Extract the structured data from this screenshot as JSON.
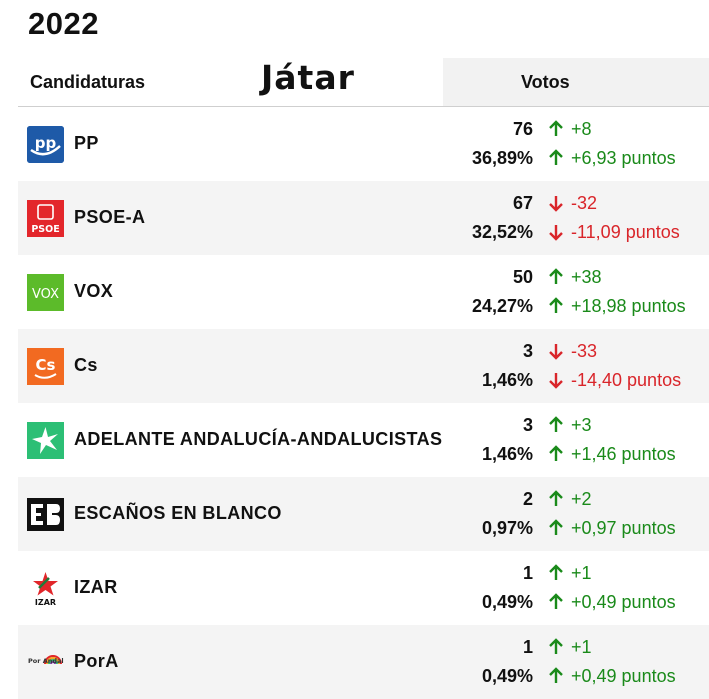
{
  "year": "2022",
  "header": {
    "candidaturas": "Candidaturas",
    "title": "Játar",
    "votos": "Votos"
  },
  "colors": {
    "up": "#1a8a1a",
    "down": "#d9252a",
    "pp": "#1e5aa8",
    "psoe": "#e3262b",
    "vox": "#5cbb2a",
    "cs": "#f26a21",
    "adelante": "#2cbf75",
    "eb": "#111111",
    "izar": "#e1262a"
  },
  "rows": [
    {
      "name": "PP",
      "seats": "76",
      "pct": "36,89%",
      "diff1": "+8",
      "diff2": "+6,93 puntos",
      "trend": "up",
      "logo_icon": "pp-logo-icon",
      "logo_text": "pp"
    },
    {
      "name": "PSOE-A",
      "seats": "67",
      "pct": "32,52%",
      "diff1": "-32",
      "diff2": "-11,09 puntos",
      "trend": "down",
      "logo_icon": "psoe-logo-icon",
      "logo_text": "PSOE"
    },
    {
      "name": "VOX",
      "seats": "50",
      "pct": "24,27%",
      "diff1": "+38",
      "diff2": "+18,98 puntos",
      "trend": "up",
      "logo_icon": "vox-logo-icon",
      "logo_text": "VOX"
    },
    {
      "name": "Cs",
      "seats": "3",
      "pct": "1,46%",
      "diff1": "-33",
      "diff2": "-14,40 puntos",
      "trend": "down",
      "logo_icon": "cs-logo-icon",
      "logo_text": "Cs"
    },
    {
      "name": "ADELANTE ANDALUCÍA-ANDALUCISTAS",
      "seats": "3",
      "pct": "1,46%",
      "diff1": "+3",
      "diff2": "+1,46 puntos",
      "trend": "up",
      "logo_icon": "adelante-logo-icon",
      "logo_text": ""
    },
    {
      "name": "ESCAÑOS EN BLANCO",
      "seats": "2",
      "pct": "0,97%",
      "diff1": "+2",
      "diff2": "+0,97 puntos",
      "trend": "up",
      "logo_icon": "escanos-en-blanco-logo-icon",
      "logo_text": "EB"
    },
    {
      "name": "IZAR",
      "seats": "1",
      "pct": "0,49%",
      "diff1": "+1",
      "diff2": "+0,49 puntos",
      "trend": "up",
      "logo_icon": "izar-logo-icon",
      "logo_text": "IZAR"
    },
    {
      "name": "PorA",
      "seats": "1",
      "pct": "0,49%",
      "diff1": "+1",
      "diff2": "+0,49 puntos",
      "trend": "up",
      "logo_icon": "pora-logo-icon",
      "logo_text": "Por Andalucía"
    }
  ]
}
